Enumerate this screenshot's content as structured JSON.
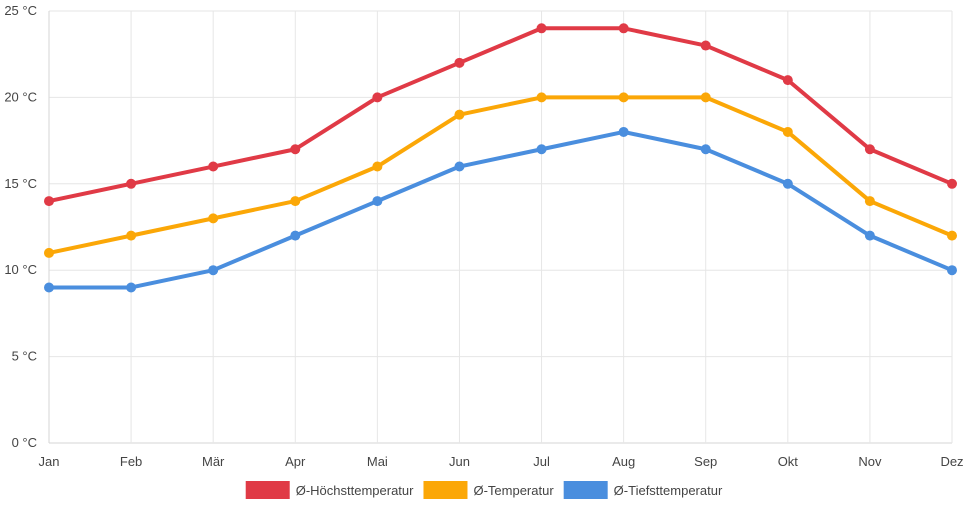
{
  "chart_data": {
    "type": "line",
    "categories": [
      "Jan",
      "Feb",
      "Mär",
      "Apr",
      "Mai",
      "Jun",
      "Jul",
      "Aug",
      "Sep",
      "Okt",
      "Nov",
      "Dez"
    ],
    "y_ticks": [
      {
        "value": 0,
        "label": "0 °C"
      },
      {
        "value": 5,
        "label": "5 °C"
      },
      {
        "value": 10,
        "label": "10 °C"
      },
      {
        "value": 15,
        "label": "15 °C"
      },
      {
        "value": 20,
        "label": "20 °C"
      },
      {
        "value": 25,
        "label": "25 °C"
      }
    ],
    "ylim": [
      0,
      25
    ],
    "grid": true,
    "legend_position": "bottom-center",
    "series": [
      {
        "name": "Ø-Höchsttemperatur",
        "color": "#e03a46",
        "values": [
          14,
          15,
          16,
          17,
          20,
          22,
          24,
          24,
          23,
          21,
          17,
          15
        ]
      },
      {
        "name": "Ø-Temperatur",
        "color": "#fba707",
        "values": [
          11,
          12,
          13,
          14,
          16,
          19,
          20,
          20,
          20,
          18,
          14,
          12
        ]
      },
      {
        "name": "Ø-Tiefsttemperatur",
        "color": "#4a8ede",
        "values": [
          9,
          9,
          10,
          12,
          14,
          16,
          17,
          18,
          17,
          15,
          12,
          10
        ]
      }
    ]
  }
}
